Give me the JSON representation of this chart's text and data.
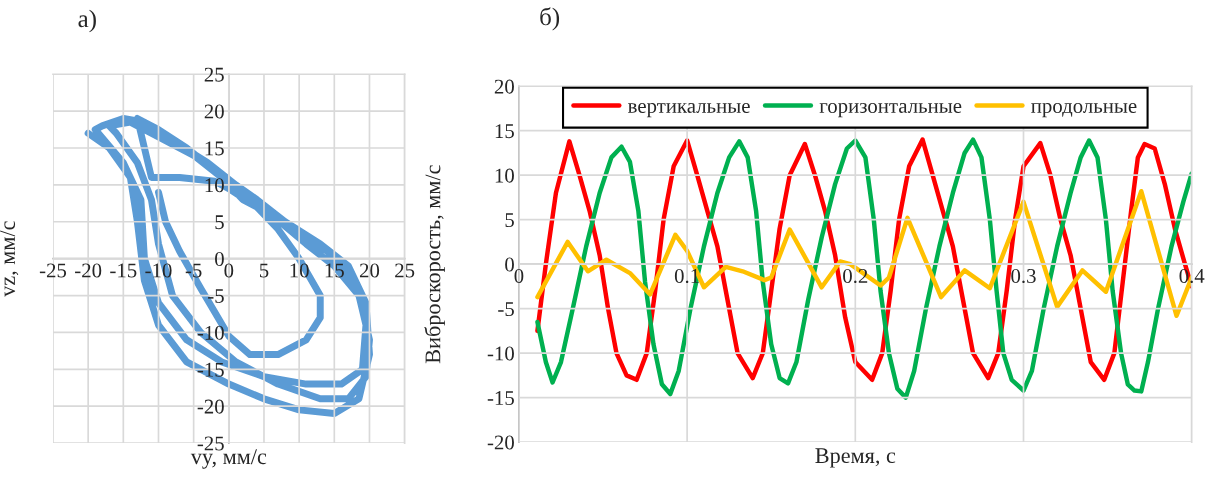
{
  "chart_data": [
    {
      "type": "line",
      "title": "а)",
      "xlabel": "vy, мм/с",
      "ylabel": "vz, мм/с",
      "xlim": [
        -25,
        25
      ],
      "ylim": [
        -25,
        25
      ],
      "xticks": [
        -25,
        -20,
        -15,
        -10,
        -5,
        0,
        5,
        10,
        15,
        20,
        25
      ],
      "yticks": [
        -25,
        -20,
        -15,
        -10,
        -5,
        0,
        5,
        10,
        15,
        20,
        25
      ],
      "grid": true,
      "series": [
        {
          "color": "#5b9bd5",
          "x": [
            -20,
            -17,
            -14,
            -13,
            -12,
            -10,
            -6,
            0,
            5,
            10,
            15,
            18.5,
            20,
            19.5,
            17,
            13,
            8,
            4,
            1,
            -3,
            -8,
            -12,
            -15,
            -18,
            -19,
            -15,
            -12.5,
            -12,
            -10,
            -6,
            -1,
            5,
            11,
            16,
            19,
            19.5,
            18,
            14,
            9,
            5,
            2,
            -1,
            -5,
            -10,
            -14,
            -17,
            -16,
            -13,
            -11,
            -10,
            -8,
            -4,
            1,
            7,
            13,
            17,
            19.5,
            20,
            18.5,
            15,
            11,
            6,
            2,
            -2,
            -6,
            -10,
            -13,
            -11,
            -7,
            -2,
            0,
            4,
            7,
            10,
            13,
            13,
            11,
            7,
            3,
            0,
            -4,
            -7,
            -9,
            -10
          ],
          "values": [
            17,
            15,
            11,
            5,
            -3,
            -9,
            -14,
            -17,
            -19,
            -20.5,
            -21,
            -19,
            -13,
            -6,
            -1,
            2,
            5,
            8,
            10,
            13,
            16,
            18.5,
            19,
            18,
            17.5,
            13,
            8,
            0,
            -6,
            -11,
            -14,
            -16,
            -17,
            -17,
            -15,
            -9,
            -3,
            1,
            4,
            7,
            9,
            11,
            14,
            16.5,
            18.5,
            18,
            17,
            13,
            8,
            2,
            -5,
            -10,
            -14,
            -17,
            -19,
            -19,
            -16,
            -11,
            -5,
            -1,
            2,
            6,
            8,
            12,
            15,
            17.5,
            19,
            11,
            11,
            10.5,
            9.5,
            7,
            4,
            0,
            -5,
            -8,
            -11,
            -13,
            -13,
            -10.5,
            -4,
            1,
            5,
            9
          ]
        }
      ]
    },
    {
      "type": "line",
      "title": "б)",
      "xlabel": "Время, с",
      "ylabel": "Виброскорость, мм/с",
      "xlim": [
        0,
        0.4
      ],
      "ylim": [
        -20,
        20
      ],
      "xticks": [
        0,
        0.1,
        0.2,
        0.3,
        0.4
      ],
      "yticks": [
        -20,
        -15,
        -10,
        -5,
        0,
        5,
        10,
        15,
        20
      ],
      "grid": true,
      "legend": "top",
      "series": [
        {
          "name": "вертикальные",
          "color": "#ff0000",
          "x": [
            0.011,
            0.016,
            0.022,
            0.03,
            0.036,
            0.042,
            0.048,
            0.053,
            0.058,
            0.064,
            0.07,
            0.076,
            0.081,
            0.086,
            0.092,
            0.1,
            0.106,
            0.112,
            0.118,
            0.124,
            0.13,
            0.139,
            0.145,
            0.15,
            0.155,
            0.161,
            0.17,
            0.176,
            0.182,
            0.188,
            0.194,
            0.2,
            0.21,
            0.216,
            0.221,
            0.226,
            0.232,
            0.24,
            0.246,
            0.252,
            0.258,
            0.264,
            0.27,
            0.279,
            0.285,
            0.29,
            0.295,
            0.3,
            0.31,
            0.316,
            0.322,
            0.328,
            0.334,
            0.34,
            0.348,
            0.354,
            0.359,
            0.364,
            0.368,
            0.372,
            0.378,
            0.384,
            0.39,
            0.396,
            0.4
          ],
          "values": [
            -7.5,
            0,
            8,
            13.8,
            10,
            6,
            1,
            -5,
            -10,
            -12.5,
            -13,
            -10,
            -3,
            5,
            11,
            13.9,
            10,
            6,
            2,
            -4,
            -10,
            -12.8,
            -10,
            -3,
            4,
            10,
            13.5,
            10,
            6,
            1,
            -6,
            -11,
            -13,
            -10,
            -3,
            5,
            11,
            14,
            10,
            6,
            2,
            -4,
            -10,
            -12.8,
            -10,
            -3,
            5,
            11,
            13.6,
            10,
            5,
            1,
            -5,
            -11,
            -13,
            -10,
            -2,
            6,
            12,
            13.5,
            13,
            9,
            4,
            0,
            -2.5
          ]
        },
        {
          "name": "горизонтальные",
          "color": "#00b050",
          "x": [
            0.011,
            0.016,
            0.02,
            0.025,
            0.032,
            0.04,
            0.048,
            0.055,
            0.061,
            0.066,
            0.071,
            0.075,
            0.08,
            0.085,
            0.09,
            0.095,
            0.102,
            0.11,
            0.118,
            0.125,
            0.131,
            0.136,
            0.141,
            0.145,
            0.15,
            0.155,
            0.16,
            0.165,
            0.172,
            0.18,
            0.188,
            0.195,
            0.2,
            0.206,
            0.211,
            0.215,
            0.22,
            0.225,
            0.23,
            0.235,
            0.242,
            0.25,
            0.258,
            0.265,
            0.27,
            0.275,
            0.28,
            0.284,
            0.288,
            0.293,
            0.3,
            0.305,
            0.312,
            0.32,
            0.328,
            0.334,
            0.339,
            0.344,
            0.349,
            0.353,
            0.358,
            0.362,
            0.366,
            0.37,
            0.374,
            0.38,
            0.388,
            0.395,
            0.4
          ],
          "values": [
            -6.5,
            -11,
            -13.3,
            -11,
            -5,
            2,
            8,
            12,
            13.2,
            11.5,
            6,
            -2,
            -9,
            -13.5,
            -14.6,
            -12,
            -5,
            2,
            8,
            12,
            13.8,
            12,
            6,
            -2,
            -9,
            -12.8,
            -13.4,
            -11,
            -4,
            3,
            9,
            13,
            13.9,
            12,
            5,
            -3,
            -10,
            -14,
            -15,
            -12,
            -5,
            2,
            8,
            12.5,
            14,
            12,
            5,
            -3,
            -10,
            -13,
            -14.2,
            -12,
            -5,
            2,
            8,
            12,
            13.9,
            12,
            5,
            -3,
            -10,
            -13.5,
            -14.2,
            -14.3,
            -11,
            -5,
            2,
            7,
            10.2
          ]
        },
        {
          "name": "продольные",
          "color": "#ffc000",
          "x": [
            0.011,
            0.029,
            0.041,
            0.052,
            0.066,
            0.078,
            0.093,
            0.1,
            0.11,
            0.123,
            0.133,
            0.146,
            0.15,
            0.161,
            0.18,
            0.191,
            0.197,
            0.215,
            0.22,
            0.231,
            0.251,
            0.265,
            0.28,
            0.3,
            0.32,
            0.335,
            0.349,
            0.37,
            0.391,
            0.4
          ],
          "values": [
            -3.7,
            2.5,
            -0.8,
            0.5,
            -1,
            -3.4,
            3.3,
            1.5,
            -2.6,
            -0.3,
            -0.8,
            -1.8,
            -1.5,
            3.9,
            -2.6,
            0.3,
            0,
            -2.4,
            -1.5,
            5.2,
            -3.7,
            -0.7,
            -2.7,
            7,
            -4.8,
            -0.7,
            -3.1,
            8.2,
            -5.8,
            -1.5
          ]
        }
      ]
    }
  ]
}
